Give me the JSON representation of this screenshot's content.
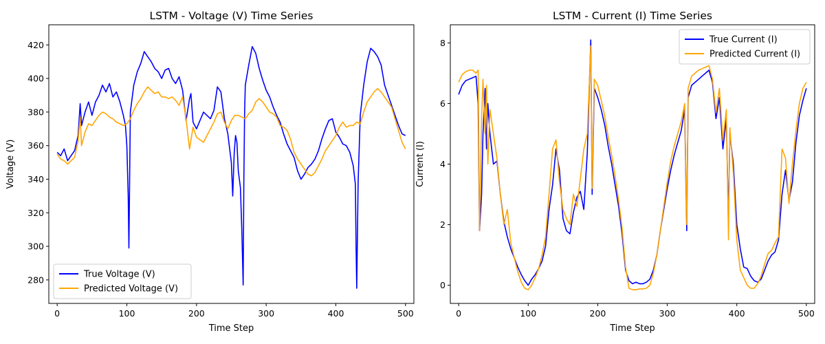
{
  "chart_data": [
    {
      "type": "line",
      "title": "LSTM - Voltage (V) Time Series",
      "xlabel": "Time Step",
      "ylabel": "Voltage (V)",
      "xlim": [
        -12,
        512
      ],
      "ylim": [
        266,
        432
      ],
      "xticks": [
        0,
        100,
        200,
        300,
        400,
        500
      ],
      "yticks": [
        280,
        300,
        320,
        340,
        360,
        380,
        400,
        420
      ],
      "legend_position": "lower-left",
      "grid": false,
      "series": [
        {
          "name": "True Voltage (V)",
          "color": "#0000ff",
          "x": [
            0,
            5,
            10,
            15,
            20,
            25,
            30,
            33,
            35,
            40,
            45,
            50,
            55,
            60,
            65,
            70,
            75,
            80,
            85,
            90,
            95,
            98,
            100,
            102,
            103,
            105,
            110,
            115,
            120,
            125,
            130,
            135,
            140,
            145,
            150,
            155,
            160,
            165,
            170,
            175,
            180,
            185,
            190,
            192,
            195,
            200,
            210,
            220,
            225,
            230,
            235,
            240,
            245,
            250,
            252,
            254,
            256,
            258,
            260,
            263,
            265,
            267,
            268,
            269,
            270,
            275,
            280,
            285,
            290,
            295,
            300,
            305,
            310,
            315,
            320,
            325,
            330,
            335,
            340,
            345,
            350,
            355,
            360,
            365,
            370,
            375,
            380,
            385,
            390,
            395,
            400,
            405,
            410,
            415,
            420,
            425,
            428,
            429,
            430,
            432,
            435,
            440,
            445,
            450,
            455,
            460,
            465,
            470,
            475,
            480,
            485,
            490,
            495,
            500
          ],
          "values": [
            356,
            354,
            358,
            351,
            354,
            357,
            366,
            385,
            372,
            380,
            386,
            378,
            386,
            390,
            396,
            392,
            397,
            389,
            392,
            386,
            378,
            372,
            360,
            330,
            299,
            380,
            396,
            404,
            409,
            416,
            413,
            410,
            406,
            404,
            400,
            405,
            406,
            400,
            397,
            401,
            393,
            375,
            388,
            391,
            374,
            370,
            380,
            376,
            381,
            395,
            392,
            376,
            367,
            350,
            330,
            355,
            366,
            362,
            345,
            335,
            310,
            277,
            340,
            380,
            396,
            408,
            419,
            415,
            406,
            399,
            393,
            389,
            383,
            378,
            374,
            367,
            361,
            357,
            353,
            345,
            340,
            343,
            347,
            349,
            352,
            357,
            364,
            370,
            375,
            376,
            368,
            365,
            361,
            360,
            356,
            348,
            337,
            300,
            275,
            338,
            378,
            396,
            410,
            418,
            416,
            413,
            408,
            396,
            390,
            384,
            378,
            372,
            367,
            366
          ]
        },
        {
          "name": "Predicted Voltage (V)",
          "color": "#ffa500",
          "x": [
            0,
            5,
            10,
            15,
            20,
            25,
            30,
            33,
            35,
            40,
            45,
            50,
            55,
            60,
            65,
            70,
            75,
            80,
            85,
            90,
            95,
            100,
            105,
            110,
            115,
            120,
            125,
            130,
            135,
            140,
            145,
            150,
            155,
            160,
            165,
            170,
            175,
            180,
            185,
            190,
            195,
            200,
            210,
            220,
            225,
            230,
            235,
            240,
            245,
            250,
            255,
            260,
            265,
            270,
            275,
            280,
            285,
            290,
            295,
            300,
            305,
            310,
            315,
            320,
            325,
            330,
            335,
            340,
            345,
            350,
            355,
            360,
            365,
            370,
            375,
            380,
            385,
            390,
            395,
            400,
            405,
            410,
            415,
            420,
            425,
            430,
            435,
            440,
            445,
            450,
            455,
            460,
            465,
            470,
            475,
            480,
            485,
            490,
            495,
            500
          ],
          "values": [
            355,
            352,
            351,
            349,
            351,
            353,
            363,
            377,
            360,
            368,
            373,
            372,
            375,
            378,
            380,
            379,
            377,
            376,
            374,
            373,
            372,
            373,
            376,
            381,
            385,
            388,
            392,
            395,
            393,
            391,
            392,
            389,
            389,
            388,
            389,
            387,
            384,
            389,
            376,
            358,
            371,
            365,
            362,
            370,
            374,
            379,
            380,
            374,
            370,
            375,
            378,
            378,
            377,
            376,
            379,
            381,
            386,
            388,
            386,
            383,
            380,
            379,
            377,
            372,
            371,
            369,
            364,
            356,
            352,
            349,
            346,
            343,
            342,
            344,
            348,
            352,
            357,
            360,
            363,
            366,
            371,
            374,
            371,
            372,
            372,
            374,
            373,
            380,
            386,
            389,
            392,
            394,
            392,
            389,
            386,
            383,
            376,
            369,
            362,
            358
          ]
        }
      ]
    },
    {
      "type": "line",
      "title": "LSTM - Current (I) Time Series",
      "xlabel": "Time Step",
      "ylabel": "Current (I)",
      "xlim": [
        -12,
        512
      ],
      "ylim": [
        -0.6,
        8.6
      ],
      "xticks": [
        0,
        100,
        200,
        300,
        400,
        500
      ],
      "yticks": [
        0,
        2,
        4,
        6,
        8
      ],
      "legend_position": "upper-right",
      "grid": false,
      "series": [
        {
          "name": "True Current (I)",
          "color": "#0000ff",
          "x": [
            0,
            5,
            10,
            15,
            20,
            25,
            28,
            30,
            33,
            35,
            38,
            40,
            42,
            45,
            50,
            55,
            60,
            65,
            70,
            75,
            80,
            85,
            90,
            95,
            100,
            105,
            110,
            115,
            120,
            125,
            130,
            135,
            140,
            145,
            150,
            155,
            160,
            165,
            170,
            175,
            180,
            185,
            190,
            192,
            195,
            200,
            205,
            210,
            215,
            220,
            225,
            230,
            235,
            240,
            245,
            250,
            255,
            260,
            265,
            270,
            275,
            280,
            285,
            290,
            295,
            300,
            305,
            310,
            315,
            320,
            325,
            328,
            330,
            335,
            340,
            345,
            350,
            355,
            360,
            365,
            370,
            375,
            380,
            385,
            388,
            390,
            395,
            400,
            405,
            410,
            415,
            420,
            425,
            430,
            435,
            440,
            445,
            450,
            455,
            460,
            465,
            470,
            475,
            480,
            485,
            490,
            495,
            500
          ],
          "values": [
            6.3,
            6.6,
            6.75,
            6.8,
            6.85,
            6.9,
            6.0,
            1.8,
            3.0,
            5.0,
            6.5,
            4.5,
            6.0,
            5.0,
            4.0,
            4.1,
            3.0,
            2.1,
            1.6,
            1.2,
            0.9,
            0.6,
            0.35,
            0.15,
            0.0,
            0.2,
            0.35,
            0.55,
            0.8,
            1.3,
            2.5,
            3.3,
            4.5,
            3.8,
            2.2,
            1.8,
            1.7,
            2.4,
            2.9,
            3.1,
            2.5,
            4.4,
            8.1,
            3.0,
            6.5,
            6.2,
            5.8,
            5.3,
            4.6,
            4.0,
            3.3,
            2.6,
            1.7,
            0.5,
            0.15,
            0.05,
            0.1,
            0.05,
            0.05,
            0.1,
            0.2,
            0.5,
            1.0,
            1.8,
            2.5,
            3.2,
            3.8,
            4.3,
            4.7,
            5.1,
            5.8,
            1.8,
            6.2,
            6.6,
            6.7,
            6.8,
            6.9,
            7.0,
            7.1,
            6.7,
            5.5,
            6.2,
            4.5,
            5.5,
            2.1,
            5.0,
            4.0,
            2.0,
            1.2,
            0.6,
            0.55,
            0.3,
            0.15,
            0.1,
            0.2,
            0.5,
            0.8,
            1.0,
            1.1,
            1.5,
            3.0,
            3.8,
            2.8,
            3.4,
            4.7,
            5.6,
            6.1,
            6.5
          ]
        },
        {
          "name": "Predicted Current (I)",
          "color": "#ffa500",
          "x": [
            0,
            5,
            10,
            15,
            20,
            25,
            28,
            30,
            33,
            35,
            38,
            40,
            42,
            45,
            50,
            55,
            60,
            65,
            70,
            75,
            80,
            85,
            90,
            95,
            100,
            105,
            110,
            115,
            120,
            125,
            130,
            135,
            140,
            145,
            150,
            155,
            160,
            165,
            170,
            175,
            180,
            185,
            190,
            192,
            195,
            200,
            205,
            210,
            215,
            220,
            225,
            230,
            235,
            240,
            245,
            250,
            255,
            260,
            265,
            270,
            275,
            280,
            285,
            290,
            295,
            300,
            305,
            310,
            315,
            320,
            325,
            328,
            330,
            335,
            340,
            345,
            350,
            355,
            360,
            365,
            370,
            375,
            380,
            385,
            388,
            390,
            395,
            400,
            405,
            410,
            415,
            420,
            425,
            430,
            435,
            440,
            445,
            450,
            455,
            460,
            465,
            470,
            475,
            480,
            485,
            490,
            495,
            500
          ],
          "values": [
            6.7,
            6.95,
            7.05,
            7.1,
            7.1,
            7.0,
            7.1,
            1.8,
            5.5,
            6.8,
            5.0,
            6.6,
            4.0,
            5.8,
            5.0,
            4.2,
            3.0,
            2.0,
            2.5,
            1.4,
            0.9,
            0.45,
            0.1,
            -0.1,
            -0.15,
            0.0,
            0.25,
            0.55,
            1.0,
            1.6,
            3.0,
            4.5,
            4.8,
            3.4,
            2.5,
            2.2,
            2.0,
            3.0,
            2.6,
            3.5,
            4.5,
            5.0,
            7.9,
            3.2,
            6.8,
            6.6,
            6.1,
            5.6,
            4.9,
            4.3,
            3.6,
            2.8,
            1.9,
            0.6,
            -0.1,
            -0.15,
            -0.15,
            -0.12,
            -0.12,
            -0.1,
            0.0,
            0.4,
            1.0,
            1.8,
            2.6,
            3.4,
            4.1,
            4.6,
            5.0,
            5.4,
            6.0,
            2.0,
            6.5,
            6.9,
            7.0,
            7.1,
            7.15,
            7.2,
            7.25,
            6.8,
            5.7,
            6.5,
            4.8,
            5.8,
            1.5,
            5.2,
            3.7,
            1.5,
            0.5,
            0.25,
            0.0,
            -0.1,
            -0.1,
            0.05,
            0.3,
            0.7,
            1.05,
            1.15,
            1.4,
            1.6,
            4.5,
            4.2,
            2.7,
            4.0,
            5.1,
            6.0,
            6.5,
            6.7
          ]
        }
      ]
    }
  ]
}
